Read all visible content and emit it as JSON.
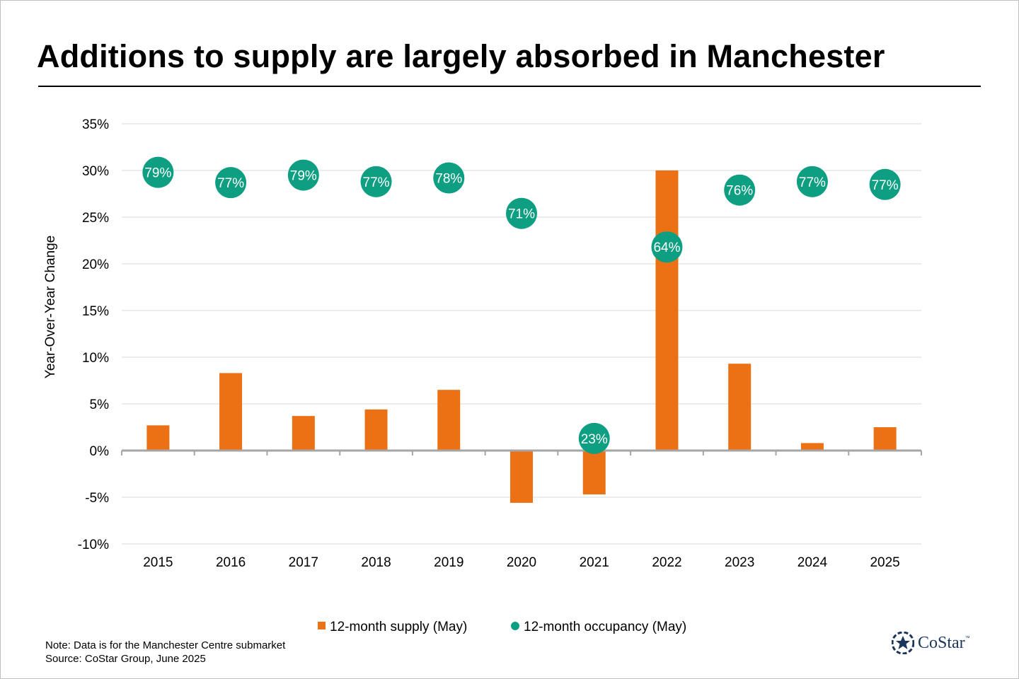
{
  "title": "Additions to supply are largely absorbed in Manchester",
  "note_line1": "Note: Data is for the Manchester Centre submarket",
  "note_line2": "Source: CoStar Group, June 2025",
  "logo_text": "CoStar",
  "logo_tm": "™",
  "colors": {
    "supply": "#ec7014",
    "occupancy": "#0e9e82",
    "grid": "#d9d9d9",
    "axis": "#a6a6a6",
    "logo": "#1b365d"
  },
  "chart_data": {
    "type": "bar",
    "ylabel": "Year-Over-Year Change",
    "xlabel": "",
    "ylim": [
      -10,
      35
    ],
    "yticks": [
      35,
      30,
      25,
      20,
      15,
      10,
      5,
      0,
      -5,
      -10
    ],
    "ytick_labels": [
      "35%",
      "30%",
      "25%",
      "20%",
      "15%",
      "10%",
      "5%",
      "0%",
      "-5%",
      "-10%"
    ],
    "categories": [
      "2015",
      "2016",
      "2017",
      "2018",
      "2019",
      "2020",
      "2021",
      "2022",
      "2023",
      "2024",
      "2025"
    ],
    "grid": true,
    "legend_position": "bottom-center",
    "series": [
      {
        "name": "12-month supply (May)",
        "type": "bar",
        "values": [
          2.7,
          8.3,
          3.7,
          4.4,
          6.5,
          -5.6,
          -4.7,
          30.0,
          9.3,
          0.8,
          2.5
        ]
      },
      {
        "name": "12-month occupancy (May)",
        "type": "marker",
        "values": [
          29.8,
          28.7,
          29.5,
          28.8,
          29.2,
          25.4,
          1.3,
          21.8,
          27.9,
          28.8,
          28.5
        ],
        "labels": [
          "79%",
          "77%",
          "79%",
          "77%",
          "78%",
          "71%",
          "23%",
          "64%",
          "76%",
          "77%",
          "77%"
        ]
      }
    ]
  }
}
